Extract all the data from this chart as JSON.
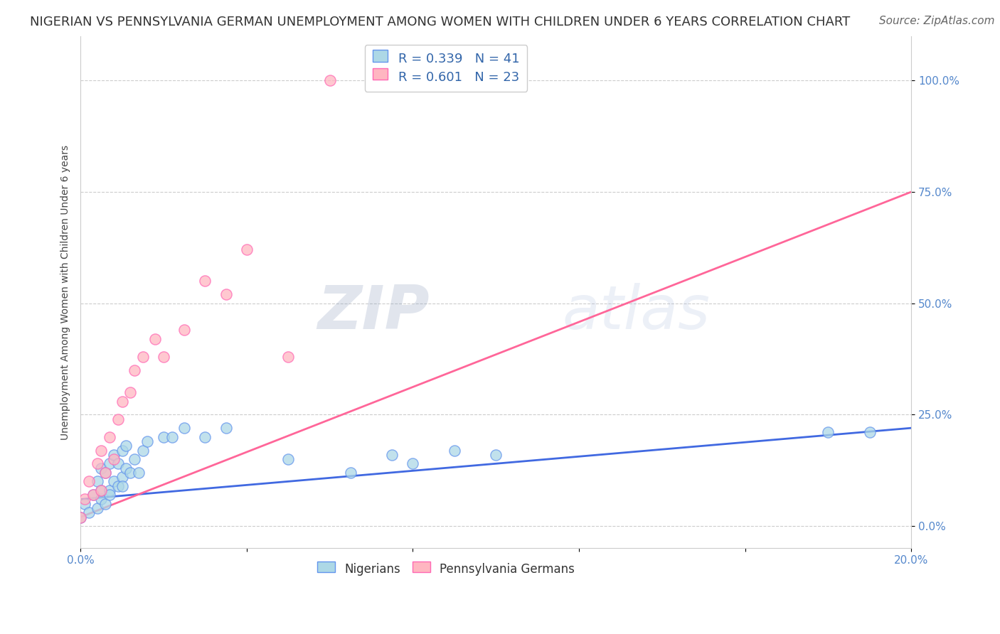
{
  "title": "NIGERIAN VS PENNSYLVANIA GERMAN UNEMPLOYMENT AMONG WOMEN WITH CHILDREN UNDER 6 YEARS CORRELATION CHART",
  "source": "Source: ZipAtlas.com",
  "ylabel": "Unemployment Among Women with Children Under 6 years",
  "xlim": [
    0.0,
    0.2
  ],
  "ylim": [
    -0.05,
    1.1
  ],
  "yticks": [
    0.0,
    0.25,
    0.5,
    0.75,
    1.0
  ],
  "ytick_labels": [
    "0.0%",
    "25.0%",
    "50.0%",
    "75.0%",
    "100.0%"
  ],
  "xticks": [
    0.0,
    0.04,
    0.08,
    0.12,
    0.16,
    0.2
  ],
  "xtick_labels": [
    "0.0%",
    "",
    "",
    "",
    "",
    "20.0%"
  ],
  "watermark_zip": "ZIP",
  "watermark_atlas": "atlas",
  "legend_R1": "R = 0.339",
  "legend_N1": "N = 41",
  "legend_R2": "R = 0.601",
  "legend_N2": "N = 23",
  "color_nigerian_fill": "#ADD8E6",
  "color_nigerian_edge": "#6495ED",
  "color_pennsylvania_fill": "#FFB6C1",
  "color_pennsylvania_edge": "#FF69B4",
  "color_nigerian_line": "#4169E1",
  "color_pennsylvania_line": "#FF6699",
  "nigerian_scatter_x": [
    0.0,
    0.001,
    0.002,
    0.003,
    0.004,
    0.004,
    0.005,
    0.005,
    0.005,
    0.006,
    0.006,
    0.007,
    0.007,
    0.007,
    0.008,
    0.008,
    0.009,
    0.009,
    0.01,
    0.01,
    0.01,
    0.011,
    0.011,
    0.012,
    0.013,
    0.014,
    0.015,
    0.016,
    0.02,
    0.022,
    0.025,
    0.03,
    0.035,
    0.05,
    0.065,
    0.075,
    0.08,
    0.09,
    0.1,
    0.18,
    0.19
  ],
  "nigerian_scatter_y": [
    0.02,
    0.05,
    0.03,
    0.07,
    0.04,
    0.1,
    0.06,
    0.13,
    0.08,
    0.05,
    0.12,
    0.08,
    0.14,
    0.07,
    0.1,
    0.16,
    0.09,
    0.14,
    0.11,
    0.17,
    0.09,
    0.13,
    0.18,
    0.12,
    0.15,
    0.12,
    0.17,
    0.19,
    0.2,
    0.2,
    0.22,
    0.2,
    0.22,
    0.15,
    0.12,
    0.16,
    0.14,
    0.17,
    0.16,
    0.21,
    0.21
  ],
  "pennsylvania_scatter_x": [
    0.0,
    0.001,
    0.002,
    0.003,
    0.004,
    0.005,
    0.005,
    0.006,
    0.007,
    0.008,
    0.009,
    0.01,
    0.012,
    0.013,
    0.015,
    0.018,
    0.02,
    0.025,
    0.03,
    0.035,
    0.04,
    0.05,
    0.06
  ],
  "pennsylvania_scatter_y": [
    0.02,
    0.06,
    0.1,
    0.07,
    0.14,
    0.08,
    0.17,
    0.12,
    0.2,
    0.15,
    0.24,
    0.28,
    0.3,
    0.35,
    0.38,
    0.42,
    0.38,
    0.44,
    0.55,
    0.52,
    0.62,
    0.38,
    1.0
  ],
  "nigerian_trendline_x": [
    0.0,
    0.2
  ],
  "nigerian_trendline_y": [
    0.06,
    0.22
  ],
  "pennsylvania_trendline_x": [
    0.0,
    0.2
  ],
  "pennsylvania_trendline_y": [
    0.02,
    0.75
  ],
  "grid_color": "#CCCCCC",
  "background_color": "#FFFFFF",
  "title_fontsize": 13,
  "axis_label_fontsize": 10,
  "tick_fontsize": 11,
  "legend_fontsize": 13,
  "source_fontsize": 11
}
